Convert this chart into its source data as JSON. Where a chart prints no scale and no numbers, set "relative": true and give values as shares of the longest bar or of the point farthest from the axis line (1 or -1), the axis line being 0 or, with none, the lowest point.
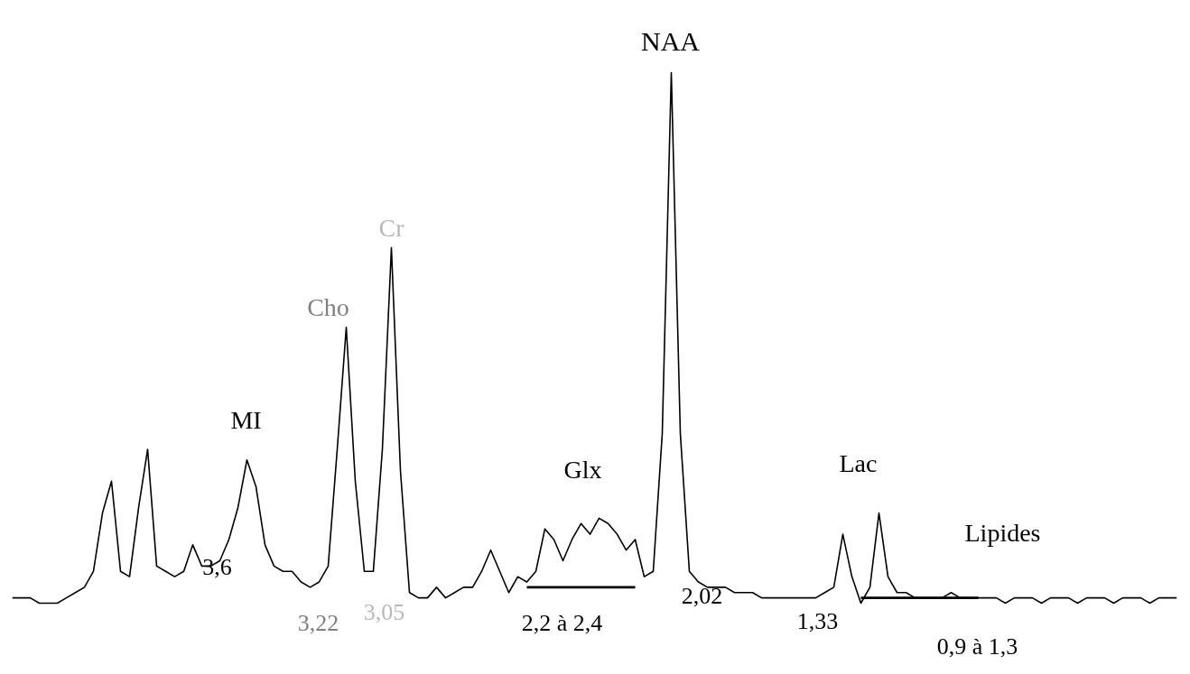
{
  "chart_data": {
    "type": "line",
    "relative": true,
    "grid": false,
    "marker": "none",
    "line_style": "solid",
    "categories": [
      null,
      null,
      null,
      null,
      null,
      null,
      null,
      null,
      null,
      null,
      null,
      null,
      null,
      null,
      null,
      null,
      null,
      null,
      null,
      null,
      null,
      null,
      null,
      null,
      null,
      null,
      null,
      null,
      null,
      null,
      null,
      null,
      null,
      null,
      null,
      null,
      null,
      null,
      null,
      null,
      null,
      null,
      null,
      null,
      null,
      null,
      null,
      null,
      null,
      null,
      null,
      null,
      null,
      null,
      null,
      null,
      null,
      null,
      null,
      null,
      null,
      null,
      null,
      null,
      null,
      null,
      null,
      null,
      null,
      null,
      null,
      null,
      null,
      null,
      null,
      null,
      null,
      null,
      null,
      null,
      null,
      null,
      null,
      null,
      null,
      null,
      null,
      null,
      null,
      null,
      null,
      null,
      null,
      null,
      null,
      null,
      null,
      null,
      null,
      null,
      null,
      null,
      null,
      null,
      null,
      null,
      null,
      null,
      null,
      null,
      null,
      null,
      null,
      null,
      null,
      null,
      null,
      null,
      null,
      null,
      null,
      null,
      null,
      null,
      null,
      null,
      null,
      null,
      null,
      null
    ],
    "series": [
      {
        "color": "#000000",
        "values": [
          0.01,
          0.01,
          0.01,
          0,
          0,
          0,
          0.01,
          0.02,
          0.03,
          0.06,
          0.17,
          0.23,
          0.06,
          0.05,
          0.18,
          0.29,
          0.07,
          0.06,
          0.05,
          0.06,
          0.11,
          0.07,
          0.07,
          0.08,
          0.12,
          0.18,
          0.27,
          0.22,
          0.11,
          0.07,
          0.06,
          0.06,
          0.04,
          0.03,
          0.04,
          0.07,
          0.29,
          0.52,
          0.23,
          0.06,
          0.06,
          0.29,
          0.67,
          0.25,
          0.02,
          0.01,
          0.01,
          0.03,
          0.01,
          0.02,
          0.03,
          0.03,
          0.06,
          0.1,
          0.06,
          0.02,
          0.05,
          0.04,
          0.06,
          0.14,
          0.12,
          0.08,
          0.12,
          0.15,
          0.13,
          0.16,
          0.15,
          0.13,
          0.1,
          0.12,
          0.05,
          0.06,
          0.32,
          1,
          0.32,
          0.06,
          0.04,
          0.03,
          0.03,
          0.03,
          0.02,
          0.02,
          0.02,
          0.01,
          0.01,
          0.01,
          0.01,
          0.01,
          0.01,
          0.01,
          0.02,
          0.03,
          0.13,
          0.05,
          0,
          0.03,
          0.17,
          0.05,
          0.02,
          0.02,
          0.01,
          0.01,
          0.01,
          0.01,
          0.02,
          0.01,
          0.01,
          0.01,
          0.01,
          0.01,
          0,
          0.01,
          0.01,
          0.01,
          0,
          0.01,
          0.01,
          0.01,
          0,
          0.01,
          0.01,
          0.01,
          0,
          0.01,
          0.01,
          0.01,
          0,
          0.01,
          0.01,
          0.01
        ]
      },
      {
        "color": "#000000",
        "values": [
          null,
          null,
          null,
          null,
          null,
          null,
          null,
          null,
          null,
          null,
          null,
          null,
          null,
          null,
          null,
          null,
          null,
          null,
          null,
          null,
          null,
          null,
          null,
          null,
          null,
          null,
          null,
          null,
          null,
          null,
          null,
          null,
          null,
          null,
          null,
          null,
          null,
          null,
          null,
          null,
          null,
          null,
          null,
          null,
          null,
          null,
          null,
          null,
          null,
          null,
          null,
          null,
          null,
          null,
          null,
          null,
          null,
          0.03,
          0.03,
          0.03,
          0.03,
          0.03,
          0.03,
          0.03,
          0.03,
          0.03,
          0.03,
          0.03,
          0.03,
          0.03,
          null,
          null,
          null,
          null,
          null,
          null,
          null,
          null,
          null,
          null,
          null,
          null,
          null,
          null,
          null,
          null,
          null,
          null,
          null,
          null,
          null,
          null,
          null,
          null,
          0.01,
          0.01,
          0.01,
          0.01,
          0.01,
          0.01,
          0.01,
          0.01,
          0.01,
          0.01,
          0.01,
          0.01,
          0.01,
          0.01,
          null,
          null,
          null,
          null,
          null,
          null,
          null,
          null,
          null,
          null,
          null,
          null,
          null,
          null,
          null,
          null,
          null,
          null,
          null,
          null,
          null,
          null
        ]
      }
    ],
    "annotations": [
      "NAA",
      "Cr",
      "Cho",
      "MI",
      "Glx",
      "Lac",
      "Lipides",
      "3,6",
      "3,22",
      "3,05",
      "2,2 à 2,4",
      "2,02",
      "1,33",
      "0,9 à 1,3"
    ]
  }
}
